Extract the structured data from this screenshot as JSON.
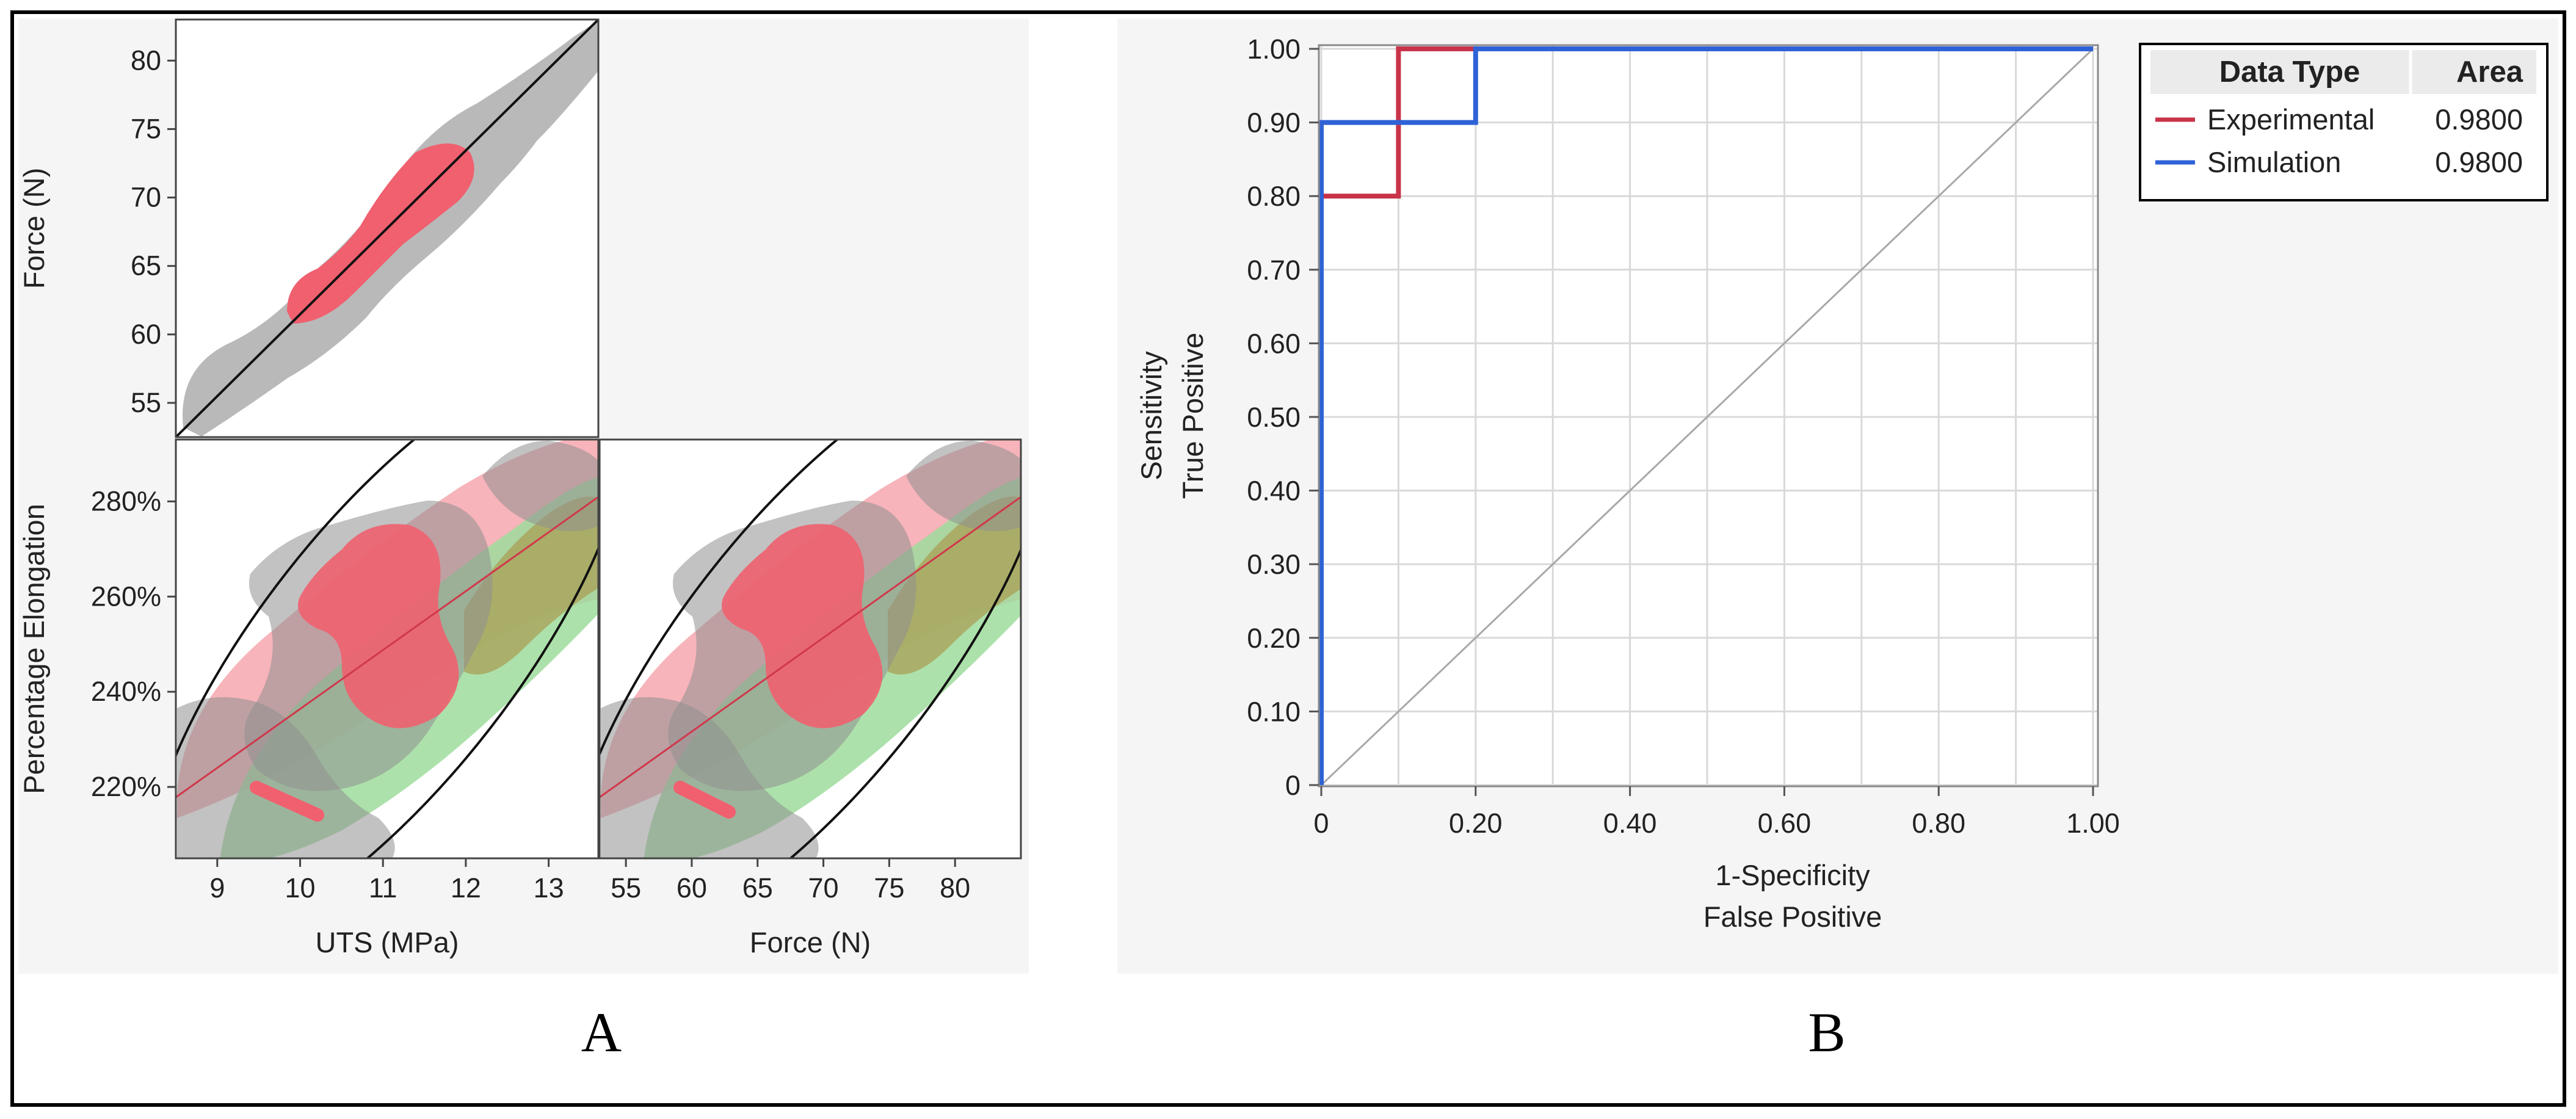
{
  "panels": {
    "a": "A",
    "b": "B"
  },
  "colors": {
    "experimental": "#c8334a",
    "simulation": "#2f62d6",
    "density_gray": "#b9b9b9",
    "density_red": "#f0606f",
    "density_pink": "#f6a7ae",
    "density_green": "#9fdc9c",
    "density_olive": "#a99f55",
    "fit_line": "#111111",
    "grid": "#d9d9d9",
    "frame": "#000000"
  },
  "chart_data": [
    {
      "type": "scatter",
      "name": "scatterplot-matrix",
      "title": "",
      "plots": [
        {
          "id": "force-vs-uts",
          "xlabel": "UTS (MPa)",
          "ylabel": "Force (N)",
          "xlim": [
            8.5,
            13.6
          ],
          "ylim": [
            52.5,
            83
          ],
          "yticks": [
            "55",
            "60",
            "65",
            "70",
            "75",
            "80"
          ],
          "ytick_values": [
            55,
            60,
            65,
            70,
            75,
            80
          ],
          "fit_line": {
            "x": [
              8.5,
              13.6
            ],
            "y": [
              52.5,
              83.0
            ]
          },
          "density": [
            "gray",
            "red"
          ]
        },
        {
          "id": "elongation-vs-uts",
          "xlabel": "UTS (MPa)",
          "ylabel": "Percentage Elongation",
          "xlim": [
            8.5,
            13.6
          ],
          "ylim": [
            205,
            293
          ],
          "xticks": [
            "9",
            "10",
            "11",
            "12",
            "13"
          ],
          "xtick_values": [
            9,
            10,
            11,
            12,
            13
          ],
          "yticks": [
            "220%",
            "240%",
            "260%",
            "280%"
          ],
          "ytick_values": [
            220,
            240,
            260,
            280
          ],
          "density": [
            "pink",
            "green",
            "gray",
            "red"
          ],
          "fit_line": {
            "x": [
              8.5,
              13.6
            ],
            "y": [
              218,
              284
            ]
          }
        },
        {
          "id": "elongation-vs-force",
          "xlabel": "Force (N)",
          "ylabel": "Percentage Elongation",
          "xlim": [
            53,
            85
          ],
          "ylim": [
            205,
            293
          ],
          "xticks": [
            "55",
            "60",
            "65",
            "70",
            "75",
            "80"
          ],
          "xtick_values": [
            55,
            60,
            65,
            70,
            75,
            80
          ],
          "density": [
            "pink",
            "green",
            "gray",
            "red"
          ],
          "fit_line": {
            "x": [
              53,
              85
            ],
            "y": [
              218,
              284
            ]
          }
        }
      ]
    },
    {
      "type": "line",
      "name": "roc-curve",
      "title": "",
      "xlabel": "1-Specificity",
      "xlabel2": "False Positive",
      "ylabel": "Sensitivity",
      "ylabel2": "True Positive",
      "xlim": [
        0,
        1
      ],
      "ylim": [
        0,
        1
      ],
      "grid": true,
      "xticks": [
        "0",
        "0.20",
        "0.40",
        "0.60",
        "0.80",
        "1.00"
      ],
      "xtick_values": [
        0,
        0.2,
        0.4,
        0.6,
        0.8,
        1.0
      ],
      "yticks": [
        "0",
        "0.10",
        "0.20",
        "0.30",
        "0.40",
        "0.50",
        "0.60",
        "0.70",
        "0.80",
        "0.90",
        "1.00"
      ],
      "ytick_values": [
        0,
        0.1,
        0.2,
        0.3,
        0.4,
        0.5,
        0.6,
        0.7,
        0.8,
        0.9,
        1.0
      ],
      "series": [
        {
          "name": "Experimental",
          "area": "0.9800",
          "x": [
            0,
            0,
            0.1,
            0.1,
            0.2,
            1.0
          ],
          "y": [
            0,
            0.8,
            0.8,
            1.0,
            1.0,
            1.0
          ]
        },
        {
          "name": "Simulation",
          "area": "0.9800",
          "x": [
            0,
            0,
            0.2,
            0.2,
            1.0
          ],
          "y": [
            0,
            0.9,
            0.9,
            1.0,
            1.0
          ]
        }
      ],
      "reference_line": {
        "x": [
          0,
          1
        ],
        "y": [
          0,
          1
        ]
      },
      "legend": {
        "position": "top-right",
        "header_type": "Data Type",
        "header_area": "Area"
      }
    }
  ]
}
